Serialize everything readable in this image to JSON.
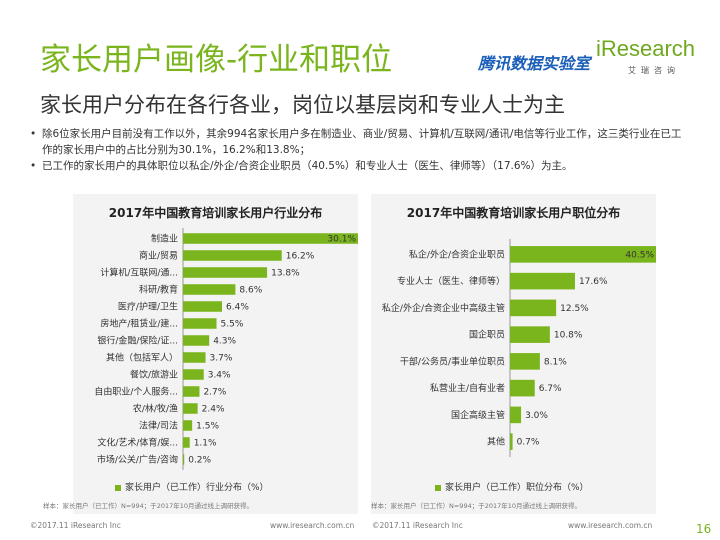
{
  "header": {
    "title": "家长用户画像-行业和职位",
    "subtitle": "家长用户分布在各行各业，岗位以基层岗和专业人士为主",
    "logo_tencent": "腾讯数据实验室",
    "logo_iresearch": "iResearch",
    "logo_iresearch_sub": "艾瑞咨询"
  },
  "bullets": [
    "除6位家长用户目前没有工作以外，其余994名家长用户多在制造业、商业/贸易、计算机/互联网/通讯/电信等行业工作，这三类行业在已工作的家长用户中的占比分别为30.1%，16.2%和13.8%；",
    "已工作的家长用户的具体职位以私企/外企/合资企业职员（40.5%）和专业人士（医生、律师等）（17.6%）为主。"
  ],
  "chart_data": [
    {
      "type": "bar",
      "orientation": "horizontal",
      "title": "2017年中国教育培训家长用户行业分布",
      "categories": [
        "制造业",
        "商业/贸易",
        "计算机/互联网/通...",
        "科研/教育",
        "医疗/护理/卫生",
        "房地产/租赁业/建...",
        "银行/金融/保险/证...",
        "其他（包括军人）",
        "餐饮/旅游业",
        "自由职业/个人服务...",
        "农/林/牧/渔",
        "法律/司法",
        "文化/艺术/体育/娱...",
        "市场/公关/广告/咨询"
      ],
      "values": [
        30.1,
        16.2,
        13.8,
        8.6,
        6.4,
        5.5,
        4.3,
        3.7,
        3.4,
        2.7,
        2.4,
        1.5,
        1.1,
        0.2
      ],
      "value_labels": [
        "30.1%",
        "16.2%",
        "13.8%",
        "8.6%",
        "6.4%",
        "5.5%",
        "4.3%",
        "3.7%",
        "3.4%",
        "2.7%",
        "2.4%",
        "1.5%",
        "1.1%",
        "0.2%"
      ],
      "legend": "家长用户（已工作）行业分布（%）",
      "note": "样本：家长用户（已工作）N=994；于2017年10月通过线上调研获得。",
      "xlim": [
        0,
        32
      ],
      "color": "#7ab51d"
    },
    {
      "type": "bar",
      "orientation": "horizontal",
      "title": "2017年中国教育培训家长用户职位分布",
      "categories": [
        "私企/外企/合资企业职员",
        "专业人士（医生、律师等）",
        "私企/外企/合资企业中高级主管",
        "国企职员",
        "干部/公务员/事业单位职员",
        "私营业主/自有业者",
        "国企高级主管",
        "其他"
      ],
      "values": [
        40.5,
        17.6,
        12.5,
        10.8,
        8.1,
        6.7,
        3.0,
        0.7
      ],
      "value_labels": [
        "40.5%",
        "17.6%",
        "12.5%",
        "10.8%",
        "8.1%",
        "6.7%",
        "3.0%",
        "0.7%"
      ],
      "legend": "家长用户（已工作）职位分布（%）",
      "note": "样本：家长用户（已工作）N=994；于2017年10月通过线上调研获得。",
      "xlim": [
        0,
        42
      ],
      "color": "#7ab51d"
    }
  ],
  "footer": {
    "copyright_left": "©2017.11 iResearch Inc",
    "url_left": "www.iresearch.com.cn",
    "copyright_right": "©2017.11 iResearch Inc",
    "url_right": "www.iresearch.com.cn",
    "page_number": "16"
  }
}
